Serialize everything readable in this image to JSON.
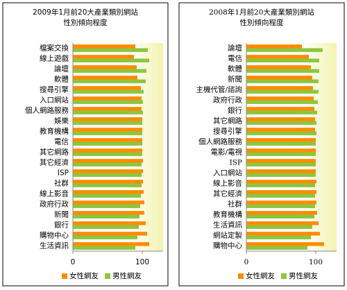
{
  "chart_data": [
    {
      "type": "bar",
      "orientation": "horizontal",
      "title": "2009年1月前20大產業類別網站",
      "subtitle": "性別傾向程度",
      "categories": [
        "檔案交換",
        "線上遊戲",
        "論壇",
        "軟體",
        "搜尋引擎",
        "入口網站",
        "個人網路服務",
        "娛樂",
        "教育機構",
        "電信",
        "其它網路",
        "其它經濟",
        "ISP",
        "社群",
        "線上影音",
        "政府行政",
        "新聞",
        "銀行",
        "購物中心",
        "生活資訊"
      ],
      "series": [
        {
          "name": "女性網友",
          "color": "#ff8c00",
          "values": [
            90,
            88,
            92,
            93,
            98,
            99,
            99,
            100,
            100,
            100,
            100,
            101,
            101,
            101,
            102,
            103,
            103,
            105,
            107,
            110
          ]
        },
        {
          "name": "男性網友",
          "color": "#8cc63f",
          "values": [
            108,
            110,
            106,
            105,
            102,
            101,
            101,
            100,
            100,
            100,
            100,
            99,
            99,
            99,
            98,
            97,
            96,
            95,
            93,
            90
          ]
        }
      ],
      "xlim": [
        0,
        130
      ],
      "xticks": [
        0,
        100
      ],
      "legend": "bottom"
    },
    {
      "type": "bar",
      "orientation": "horizontal",
      "title": "2008年1月前20大產業類別網站",
      "subtitle": "性別傾向程度",
      "categories": [
        "論壇",
        "電信",
        "軟體",
        "新聞",
        "主機代管/諮詢",
        "政府行政",
        "銀行",
        "其它網路",
        "搜尋引擎",
        "個人網路服務",
        "電影/電視",
        "ISP",
        "入口網站",
        "線上影音",
        "其它經濟",
        "社群",
        "教育機構",
        "生活資訊",
        "網站定製",
        "購物中心"
      ],
      "series": [
        {
          "name": "女性網友",
          "color": "#ff8c00",
          "values": [
            80,
            90,
            93,
            95,
            96,
            97,
            98,
            99,
            99,
            100,
            100,
            100,
            100,
            101,
            101,
            101,
            102,
            104,
            106,
            112
          ]
        },
        {
          "name": "男性網友",
          "color": "#8cc63f",
          "values": [
            110,
            105,
            105,
            104,
            104,
            103,
            102,
            101,
            101,
            100,
            100,
            100,
            100,
            99,
            99,
            99,
            98,
            95,
            93,
            88
          ]
        }
      ],
      "xlim": [
        0,
        130
      ],
      "xticks": [
        0,
        100
      ],
      "legend": "bottom"
    }
  ]
}
